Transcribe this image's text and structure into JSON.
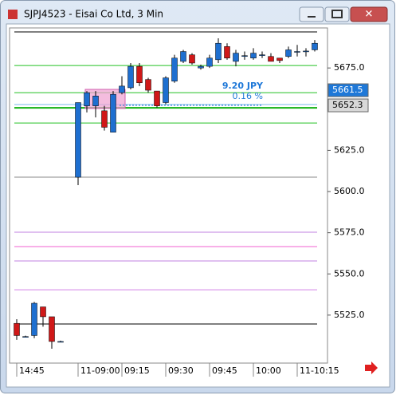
{
  "window_title": "SJPJ4523 - Eisai Co Ltd, 3 Min",
  "chart_data": {
    "type": "candlestick",
    "categories": [
      "14:45",
      null,
      null,
      null,
      null,
      null,
      null,
      "11-09:00",
      null,
      null,
      null,
      null,
      "09:15",
      null,
      null,
      null,
      null,
      "09:30",
      null,
      null,
      null,
      null,
      "09:45",
      null,
      null,
      null,
      null,
      "10:00",
      null,
      null,
      null,
      null,
      "11-10:15",
      null,
      null
    ],
    "open": [
      5520,
      5512,
      5512.6,
      5530,
      5524,
      5509,
      null,
      5608.7,
      5652,
      5652,
      5649,
      5636,
      5660,
      5663,
      5676,
      5668,
      5661,
      5654,
      5667,
      5679,
      5683,
      5675,
      5676,
      5680,
      5688,
      5679,
      5682,
      5681,
      5683,
      5682,
      5681,
      5682,
      5685,
      5685,
      5686
    ],
    "high": [
      5522.5,
      5512.5,
      5533,
      5530,
      5524,
      5509.5,
      null,
      5654,
      5661,
      5661,
      5652,
      5661,
      5670,
      5678,
      5678,
      5669,
      5661,
      5670,
      5683,
      5686,
      5684,
      5677,
      5683,
      5693,
      5690,
      5686,
      5685,
      5687,
      5685,
      5684,
      5681,
      5688,
      5689,
      5687,
      5692
    ],
    "low": [
      5510,
      5511.5,
      5511,
      5518,
      5504.6,
      5508.5,
      null,
      5603.9,
      5648,
      5645,
      5637,
      5636,
      5659,
      5662,
      5664,
      5660,
      5651,
      5653,
      5666,
      5678,
      5677,
      5674,
      5675,
      5678,
      5680,
      5676,
      5680,
      5680,
      5681,
      5679,
      5678,
      5681,
      5682,
      5682,
      5685
    ],
    "close": [
      5512.6,
      5512,
      5532.2,
      5524,
      5509,
      5509,
      null,
      5654,
      5660,
      5658,
      5639,
      5659,
      5664,
      5676,
      5666,
      5661.5,
      5652,
      5669,
      5681,
      5685,
      5678,
      5676,
      5681,
      5690,
      5681,
      5684,
      5682.5,
      5684,
      5683,
      5679,
      5679.5,
      5686,
      5685,
      5685.3,
      5690
    ],
    "up_color": "#1e6fd0",
    "down_color": "#d01818",
    "ylim": [
      5498.3,
      5699.3
    ],
    "yticks": [
      {
        "value": 5525,
        "label": "5525.0"
      },
      {
        "value": 5550,
        "label": "5550.0"
      },
      {
        "value": 5575,
        "label": "5575.0"
      },
      {
        "value": 5600,
        "label": "5600.0"
      },
      {
        "value": 5625,
        "label": "5625.0"
      },
      {
        "value": 5675,
        "label": "5675.0"
      }
    ],
    "levels": [
      {
        "value": 5696.9,
        "color": "#000000"
      },
      {
        "value": 5519.6,
        "color": "#000000"
      },
      {
        "value": 5608.7,
        "color": "#888888"
      },
      {
        "value": 5676.5,
        "color": "#22c022"
      },
      {
        "value": 5660,
        "color": "#22c022"
      },
      {
        "value": 5650.8,
        "color": "#10b010"
      },
      {
        "value": 5641.6,
        "color": "#22c022"
      },
      {
        "value": 5652.8,
        "color": "#7ab8e8"
      },
      {
        "value": 5575.3,
        "color": "#c080e0"
      },
      {
        "value": 5566.6,
        "color": "#f060d0"
      },
      {
        "value": 5557.9,
        "color": "#c080e0"
      },
      {
        "value": 5540.4,
        "color": "#d080e8"
      }
    ],
    "price_labels": [
      5661.5,
      5652.3
    ],
    "price_label_colors": [
      "#1e78d8",
      "#d8d8d8"
    ],
    "annotations": [
      "9.20 JPY",
      "0.16 %"
    ]
  }
}
